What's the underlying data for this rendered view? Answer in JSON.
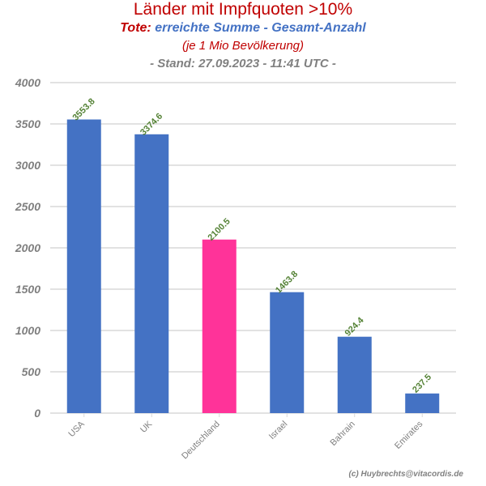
{
  "header": {
    "title": "Länder mit Impfquoten >10%",
    "subtitle_label": "Tote:",
    "subtitle_text": "erreichte Summe - Gesamt-Anzahl",
    "unit": "(je 1 Mio Bevölkerung)",
    "stand": "- Stand: 27.09.2023 - 11:41 UTC -"
  },
  "footer": {
    "credit": "(c) Huybrechts@vitacordis.de"
  },
  "chart_data": {
    "type": "bar",
    "categories": [
      "USA",
      "UK",
      "Deutschland",
      "Israel",
      "Bahrain",
      "Emirates"
    ],
    "values": [
      3553.8,
      3374.6,
      2100.5,
      1463.8,
      924.4,
      237.5
    ],
    "value_labels": [
      "3553.8",
      "3374.6",
      "2100.5",
      "1463.8",
      "924.4",
      "237.5"
    ],
    "bar_colors": [
      "#4472c4",
      "#4472c4",
      "#ff3399",
      "#4472c4",
      "#4472c4",
      "#4472c4"
    ],
    "ylim": [
      0,
      4000
    ],
    "yticks": [
      0,
      500,
      1000,
      1500,
      2000,
      2500,
      3000,
      3500,
      4000
    ],
    "grid": true,
    "colors": {
      "label": "#548235",
      "grid": "#d9d9d9",
      "tick": "#808080"
    }
  }
}
